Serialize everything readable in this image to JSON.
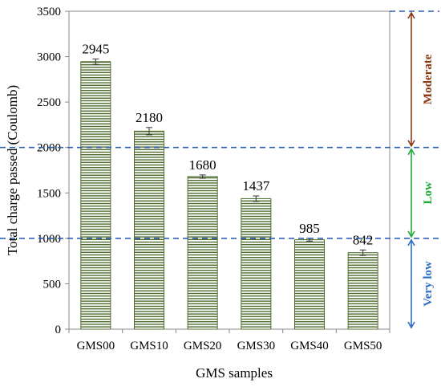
{
  "chart_data": {
    "type": "bar",
    "categories": [
      "GMS00",
      "GMS10",
      "GMS20",
      "GMS30",
      "GMS40",
      "GMS50"
    ],
    "values": [
      2945,
      2180,
      1680,
      1437,
      985,
      842
    ],
    "data_labels": [
      "2945",
      "2180",
      "1680",
      "1437",
      "985",
      "842"
    ],
    "error": [
      30,
      40,
      18,
      30,
      15,
      30
    ],
    "xlabel": "GMS samples",
    "ylabel": "Total charge passed (Coulomb)",
    "ylim": [
      0,
      3500
    ],
    "yticks": [
      0,
      500,
      1000,
      1500,
      2000,
      2500,
      3000,
      3500
    ],
    "grid": false,
    "bar_color": "#4e6b2e",
    "thresholds": [
      {
        "value": 1000,
        "color": "#2f5fb3"
      },
      {
        "value": 2000,
        "color": "#2f5fb3"
      }
    ],
    "zones": [
      {
        "label": "Very low",
        "from": 0,
        "to": 1000,
        "color": "#2f6fc0"
      },
      {
        "label": "Low",
        "from": 1000,
        "to": 2000,
        "color": "#1faa3a"
      },
      {
        "label": "Moderate",
        "from": 2000,
        "to": 3500,
        "color": "#8b3a14"
      }
    ]
  }
}
